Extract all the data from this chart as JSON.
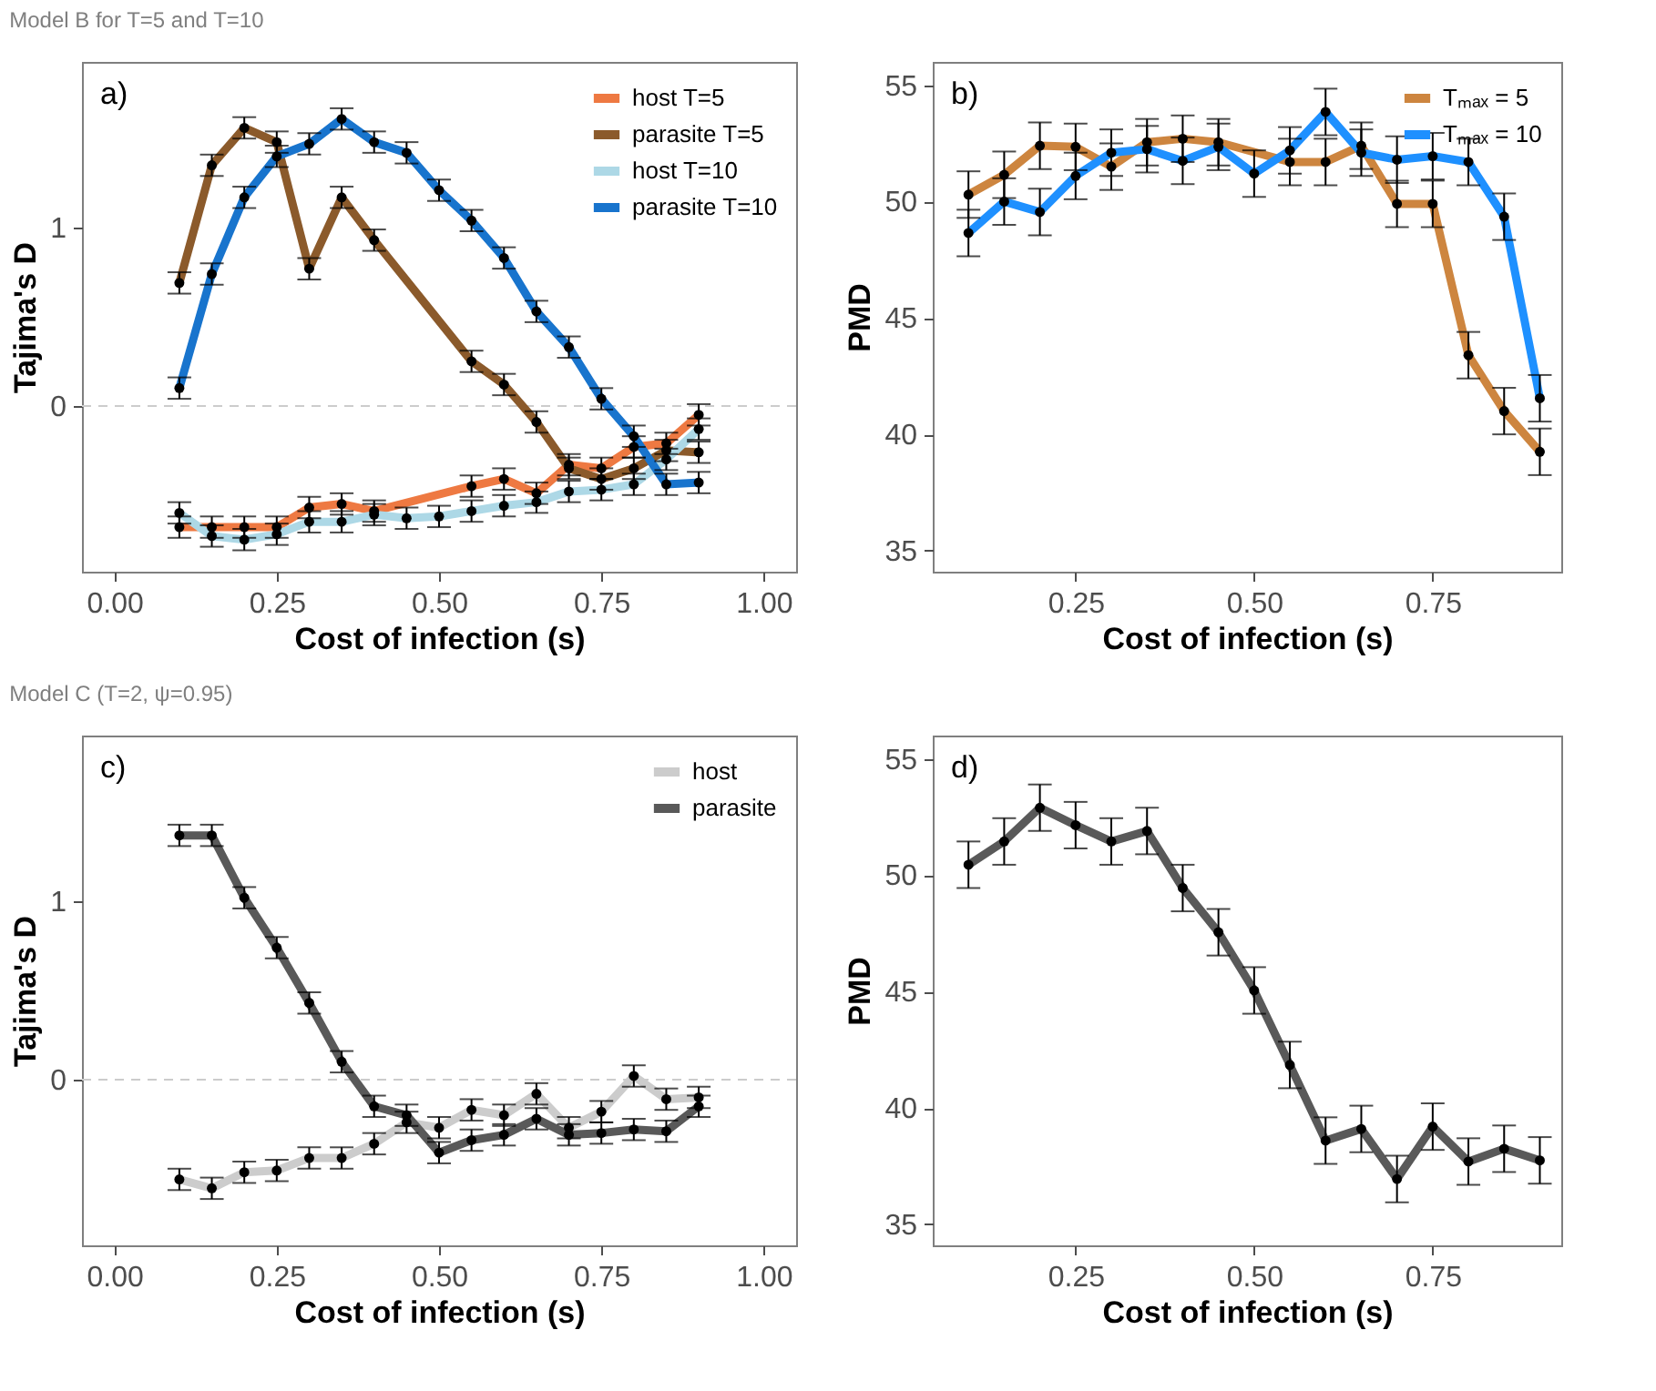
{
  "chart_data": [
    {
      "type": "line",
      "title": "Model B for T=5 and T=10",
      "annotations": [
        "a)"
      ],
      "xlabel": "Cost of infection (s)",
      "ylabel": "Tajima's D",
      "x": [
        0.1,
        0.15,
        0.2,
        0.25,
        0.3,
        0.35,
        0.4,
        0.45,
        0.5,
        0.55,
        0.6,
        0.65,
        0.7,
        0.75,
        0.8,
        0.85,
        0.9
      ],
      "xlim": [
        -0.05,
        1.05
      ],
      "xticks": [
        {
          "value": 0,
          "label": "0.00"
        },
        {
          "value": 0.25,
          "label": "0.25"
        },
        {
          "value": 0.5,
          "label": "0.50"
        },
        {
          "value": 0.75,
          "label": "0.75"
        },
        {
          "value": 1,
          "label": "1.00"
        }
      ],
      "ylim": [
        -0.93,
        1.93
      ],
      "yticks": [
        0,
        1
      ],
      "legend": "top right",
      "marker": "circle",
      "line_style": "solid",
      "ref_lines": [
        {
          "axis": "y",
          "value": 0,
          "color": "#cccccc",
          "line_style": "dashed"
        }
      ],
      "series": [
        {
          "name": "host T=5",
          "color": "#ee7942",
          "x": [
            0.1,
            0.15,
            0.2,
            0.25,
            0.3,
            0.35,
            0.4,
            0.55,
            0.6,
            0.65,
            0.7,
            0.75,
            0.8,
            0.85,
            0.9
          ],
          "values": [
            -0.68,
            -0.68,
            -0.68,
            -0.68,
            -0.57,
            -0.55,
            -0.59,
            -0.45,
            -0.41,
            -0.49,
            -0.33,
            -0.35,
            -0.23,
            -0.21,
            -0.05
          ],
          "errors": [
            0.06,
            0.06,
            0.06,
            0.06,
            0.06,
            0.06,
            0.06,
            0.06,
            0.06,
            0.06,
            0.06,
            0.06,
            0.06,
            0.06,
            0.06
          ]
        },
        {
          "name": "parasite T=5",
          "color": "#8b5a2b",
          "x": [
            0.1,
            0.15,
            0.2,
            0.25,
            0.3,
            0.35,
            0.4,
            0.55,
            0.6,
            0.65,
            0.7,
            0.75,
            0.8,
            0.85,
            0.9
          ],
          "values": [
            0.69,
            1.35,
            1.56,
            1.48,
            0.77,
            1.17,
            0.93,
            0.25,
            0.12,
            -0.09,
            -0.35,
            -0.41,
            -0.35,
            -0.25,
            -0.26
          ],
          "errors": [
            0.06,
            0.06,
            0.06,
            0.06,
            0.06,
            0.06,
            0.06,
            0.06,
            0.06,
            0.06,
            0.06,
            0.06,
            0.06,
            0.06,
            0.06
          ]
        },
        {
          "name": "host T=10",
          "color": "#add8e6",
          "values": [
            -0.6,
            -0.73,
            -0.75,
            -0.72,
            -0.65,
            -0.65,
            -0.61,
            -0.63,
            -0.62,
            -0.59,
            -0.56,
            -0.54,
            -0.48,
            -0.47,
            -0.44,
            -0.3,
            -0.13
          ],
          "errors": [
            0.06,
            0.06,
            0.06,
            0.06,
            0.06,
            0.06,
            0.06,
            0.06,
            0.06,
            0.06,
            0.06,
            0.06,
            0.06,
            0.06,
            0.06,
            0.06,
            0.06
          ]
        },
        {
          "name": "parasite T=10",
          "color": "#1874cd",
          "values": [
            0.1,
            0.74,
            1.17,
            1.4,
            1.47,
            1.61,
            1.48,
            1.42,
            1.21,
            1.04,
            0.83,
            0.53,
            0.33,
            0.04,
            -0.17,
            -0.44,
            -0.43
          ],
          "errors": [
            0.06,
            0.06,
            0.06,
            0.06,
            0.06,
            0.06,
            0.06,
            0.06,
            0.06,
            0.06,
            0.06,
            0.06,
            0.06,
            0.06,
            0.06,
            0.06,
            0.06
          ]
        }
      ]
    },
    {
      "type": "line",
      "annotations": [
        "b)"
      ],
      "xlabel": "Cost of infection (s)",
      "ylabel": "PMD",
      "x": [
        0.1,
        0.15,
        0.2,
        0.25,
        0.3,
        0.35,
        0.4,
        0.45,
        0.5,
        0.55,
        0.6,
        0.65,
        0.7,
        0.75,
        0.8,
        0.85,
        0.9
      ],
      "xlim": [
        0.05,
        0.93
      ],
      "xticks": [
        {
          "value": 0.25,
          "label": "0.25"
        },
        {
          "value": 0.5,
          "label": "0.50"
        },
        {
          "value": 0.75,
          "label": "0.75"
        }
      ],
      "ylim": [
        34.1,
        56
      ],
      "yticks": [
        35,
        40,
        45,
        50,
        55
      ],
      "legend": "top right",
      "marker": "circle",
      "line_style": "solid",
      "series": [
        {
          "name": "Tₘₐₓ = 5",
          "color": "#cd853f",
          "x": [
            0.1,
            0.15,
            0.2,
            0.25,
            0.3,
            0.35,
            0.4,
            0.45,
            0.55,
            0.6,
            0.65,
            0.7,
            0.75,
            0.8,
            0.85,
            0.9
          ],
          "values": [
            50.3,
            51.15,
            52.4,
            52.35,
            51.5,
            52.55,
            52.7,
            52.55,
            51.7,
            51.7,
            52.4,
            49.9,
            49.9,
            43.4,
            41,
            39.25
          ],
          "errors": [
            1,
            1,
            1,
            1,
            1,
            1,
            1,
            1,
            1,
            1,
            1,
            1,
            1,
            1,
            1,
            1
          ]
        },
        {
          "name": "Tₘₐₓ = 10",
          "color": "#1e90ff",
          "values": [
            48.65,
            50,
            49.55,
            51.1,
            52.1,
            52.25,
            51.75,
            52.35,
            51.2,
            52.2,
            53.85,
            52.1,
            51.8,
            51.95,
            51.7,
            49.35,
            41.55
          ],
          "errors": [
            1,
            1,
            1,
            1,
            1,
            1,
            1,
            1,
            1,
            1,
            1,
            1,
            1,
            1,
            1,
            1,
            1
          ]
        }
      ]
    },
    {
      "type": "line",
      "title": "Model C (T=2, ψ=0.95)",
      "annotations": [
        "c)"
      ],
      "xlabel": "Cost of infection (s)",
      "ylabel": "Tajima's D",
      "x": [
        0.1,
        0.15,
        0.2,
        0.25,
        0.3,
        0.35,
        0.4,
        0.45,
        0.5,
        0.55,
        0.6,
        0.65,
        0.7,
        0.75,
        0.8,
        0.85,
        0.9
      ],
      "xlim": [
        -0.05,
        1.05
      ],
      "xticks": [
        {
          "value": 0,
          "label": "0.00"
        },
        {
          "value": 0.25,
          "label": "0.25"
        },
        {
          "value": 0.5,
          "label": "0.50"
        },
        {
          "value": 0.75,
          "label": "0.75"
        },
        {
          "value": 1,
          "label": "1.00"
        }
      ],
      "ylim": [
        -0.93,
        1.93
      ],
      "yticks": [
        0,
        1
      ],
      "legend": "top right",
      "marker": "circle",
      "line_style": "solid",
      "ref_lines": [
        {
          "axis": "y",
          "value": 0,
          "color": "#cccccc",
          "line_style": "dashed"
        }
      ],
      "series": [
        {
          "name": "host",
          "color": "#cccccc",
          "values": [
            -0.56,
            -0.61,
            -0.52,
            -0.51,
            -0.44,
            -0.44,
            -0.36,
            -0.24,
            -0.27,
            -0.17,
            -0.2,
            -0.08,
            -0.27,
            -0.18,
            0.02,
            -0.11,
            -0.1
          ],
          "errors": [
            0.06,
            0.06,
            0.06,
            0.06,
            0.06,
            0.06,
            0.06,
            0.06,
            0.06,
            0.06,
            0.06,
            0.06,
            0.06,
            0.06,
            0.06,
            0.06,
            0.06
          ]
        },
        {
          "name": "parasite",
          "color": "#595959",
          "values": [
            1.37,
            1.37,
            1.02,
            0.74,
            0.43,
            0.1,
            -0.15,
            -0.2,
            -0.41,
            -0.34,
            -0.31,
            -0.22,
            -0.31,
            -0.3,
            -0.28,
            -0.29,
            -0.15
          ],
          "errors": [
            0.06,
            0.06,
            0.06,
            0.06,
            0.06,
            0.06,
            0.06,
            0.06,
            0.06,
            0.06,
            0.06,
            0.06,
            0.06,
            0.06,
            0.06,
            0.06,
            0.06
          ]
        }
      ]
    },
    {
      "type": "line",
      "annotations": [
        "d)"
      ],
      "xlabel": "Cost of infection (s)",
      "ylabel": "PMD",
      "x": [
        0.1,
        0.15,
        0.2,
        0.25,
        0.3,
        0.35,
        0.4,
        0.45,
        0.5,
        0.55,
        0.6,
        0.65,
        0.7,
        0.75,
        0.8,
        0.85,
        0.9
      ],
      "xlim": [
        0.05,
        0.93
      ],
      "xticks": [
        {
          "value": 0.25,
          "label": "0.25"
        },
        {
          "value": 0.5,
          "label": "0.50"
        },
        {
          "value": 0.75,
          "label": "0.75"
        }
      ],
      "ylim": [
        34.1,
        56
      ],
      "yticks": [
        35,
        40,
        45,
        50,
        55
      ],
      "marker": "circle",
      "line_style": "solid",
      "series": [
        {
          "color": "#595959",
          "values": [
            50.45,
            51.45,
            52.9,
            52.15,
            51.45,
            51.9,
            49.45,
            47.55,
            45.05,
            41.85,
            38.6,
            39.1,
            36.95,
            39.2,
            37.7,
            38.25,
            37.75
          ],
          "errors": [
            1,
            1,
            1,
            1,
            1,
            1,
            1,
            1,
            1,
            1,
            1,
            1,
            1,
            1,
            1,
            1,
            1
          ]
        }
      ]
    }
  ]
}
